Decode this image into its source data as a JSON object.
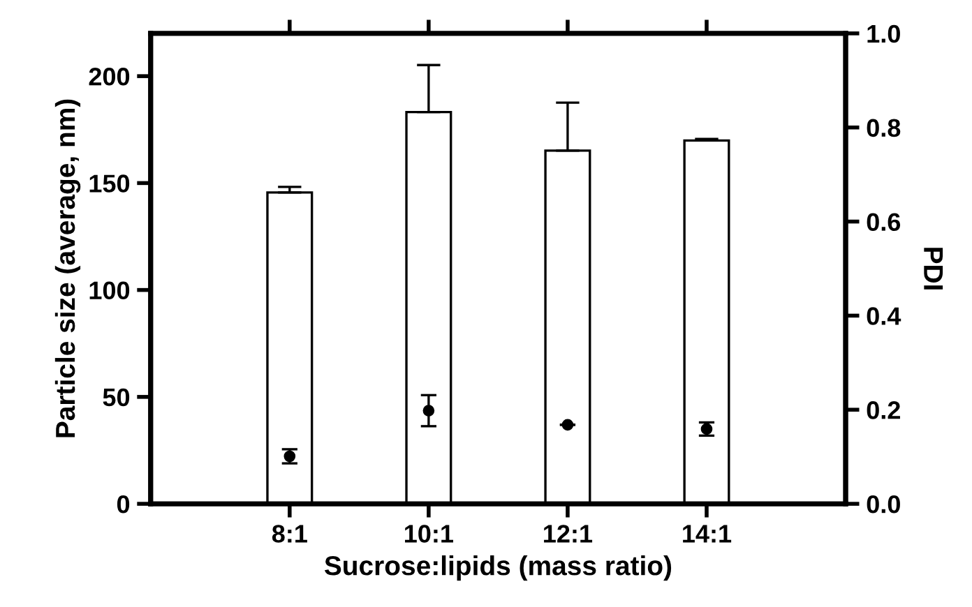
{
  "chart_data": {
    "type": "bar",
    "xlabel": "Sucrose:lipids (mass ratio)",
    "ylabel": "Particle size (average, nm)",
    "y2label": "PDI",
    "categories": [
      "8:1",
      "10:1",
      "12:1",
      "14:1"
    ],
    "series": [
      {
        "color": "#ffffff",
        "values": [
          145.6,
          183.2,
          165.2,
          169.9
        ],
        "errors": [
          [
            145.6,
            148.2
          ],
          [
            183.2,
            205.2
          ],
          [
            165.2,
            187.6
          ],
          [
            169.9,
            170.6
          ]
        ]
      },
      {
        "type": "scatter",
        "axis": "y2",
        "color": "#000000",
        "values": [
          0.101,
          0.198,
          0.168,
          0.159
        ],
        "errors": [
          0.015,
          0.033,
          null,
          0.014
        ]
      }
    ],
    "ylim": [
      0,
      220
    ],
    "yticks": [
      0,
      50,
      100,
      150,
      200
    ],
    "y2lim": [
      0,
      1.0
    ],
    "y2ticks": [
      {
        "value": 0,
        "label": "0.0"
      },
      {
        "value": 0.2,
        "label": "0.2"
      },
      {
        "value": 0.4,
        "label": "0.4"
      },
      {
        "value": 0.6,
        "label": "0.6"
      },
      {
        "value": 0.8,
        "label": "0.8"
      },
      {
        "value": 1.0,
        "label": "1.0"
      }
    ],
    "grid": false,
    "marker": "circle"
  }
}
